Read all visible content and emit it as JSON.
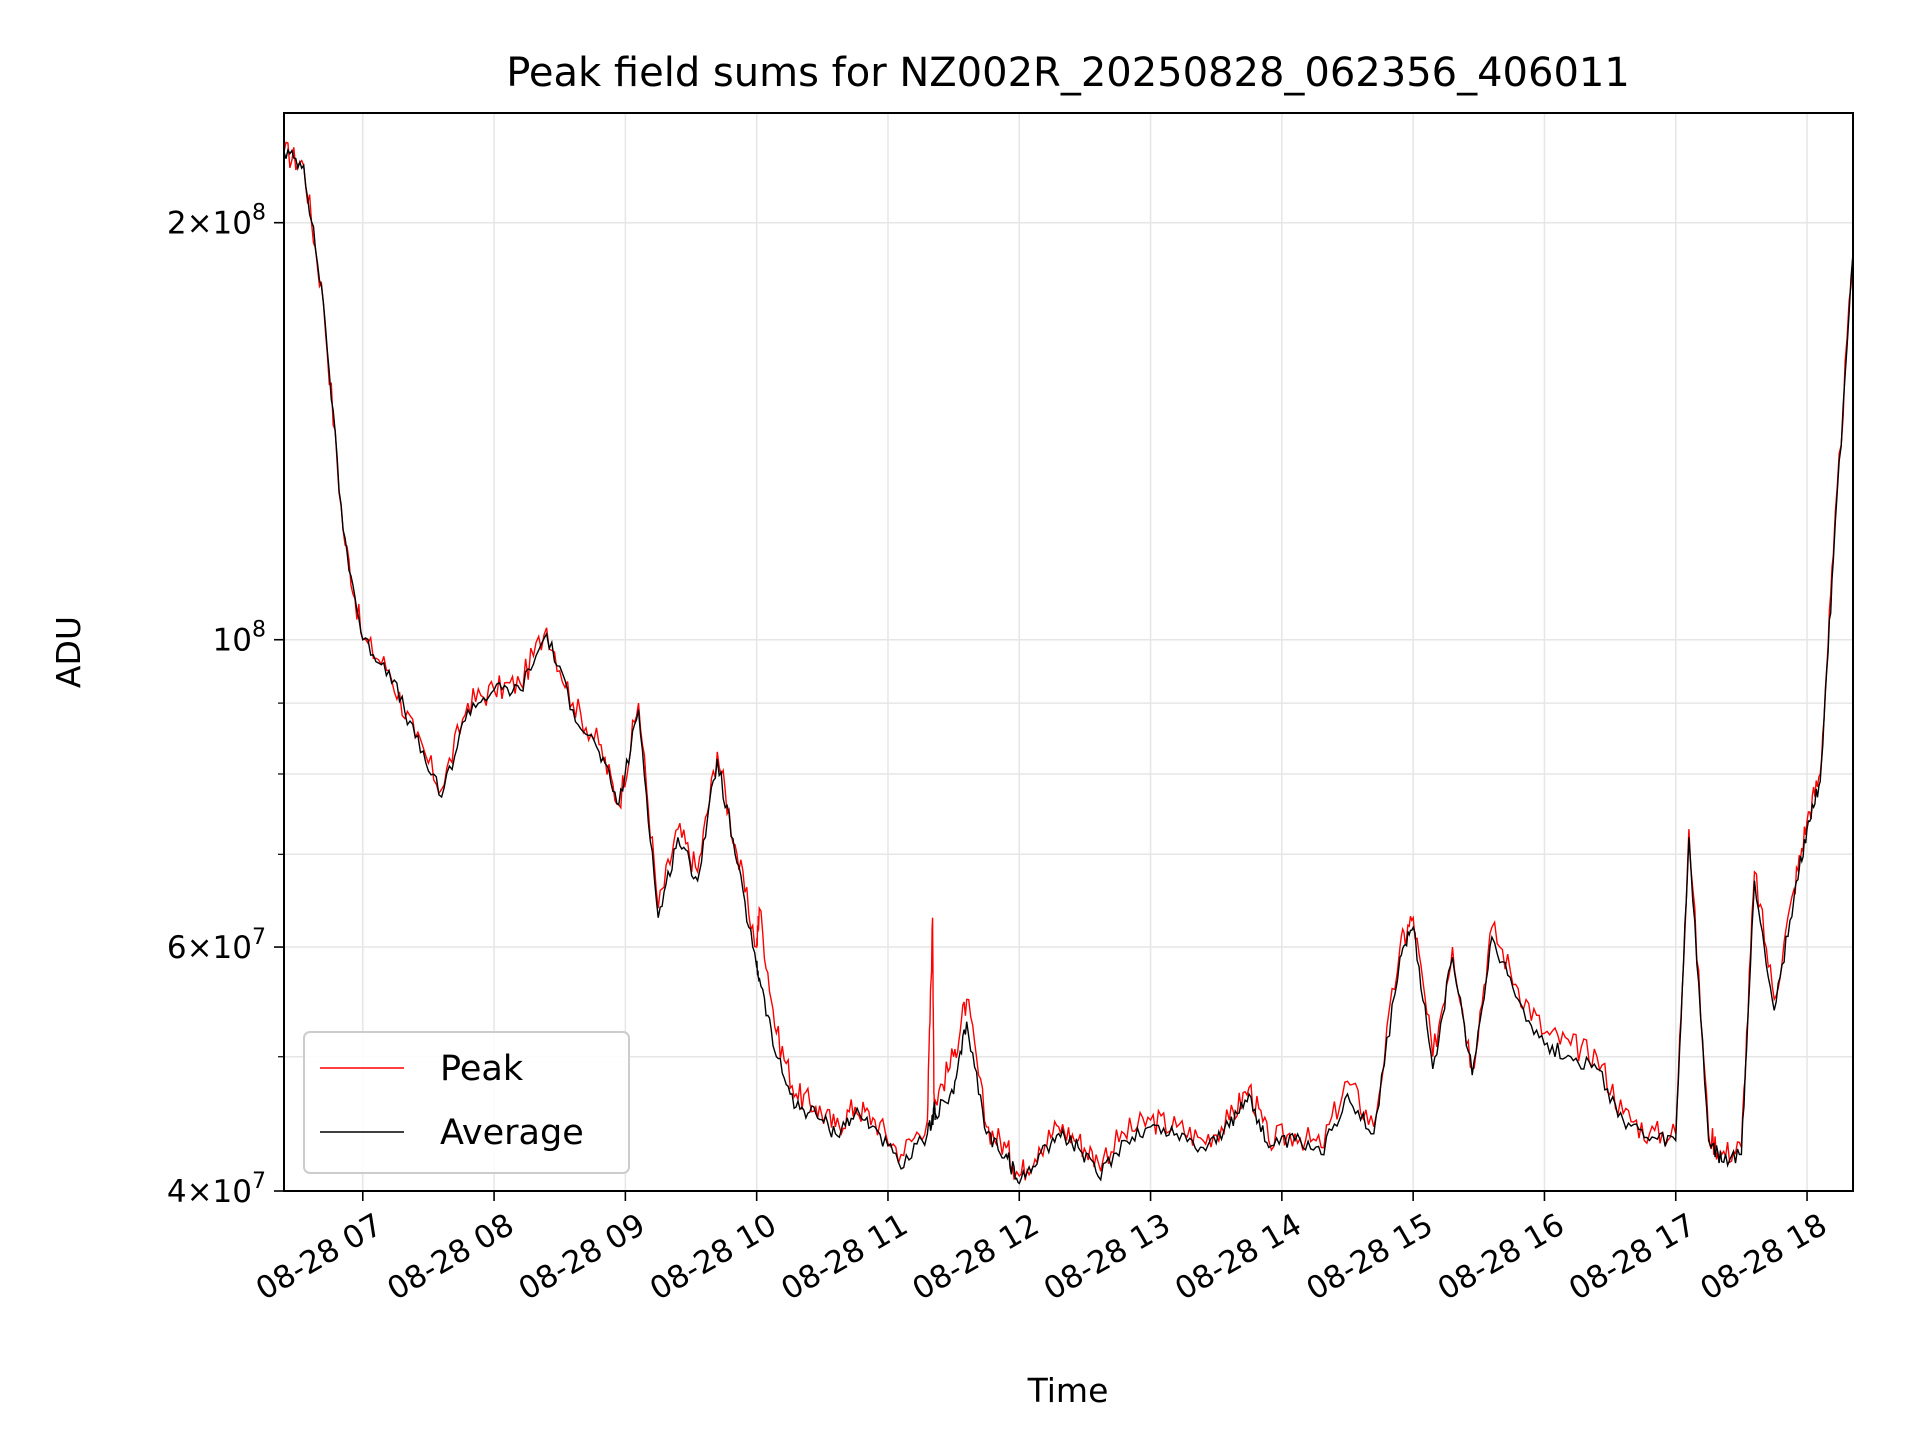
{
  "chart_data": {
    "type": "line",
    "title": "Peak field sums for NZ002R_20250828_062356_406011",
    "xlabel": "Time",
    "ylabel": "ADU",
    "y_scale": "log",
    "ylim": [
      40000000,
      240000000
    ],
    "xlim": [
      "08-28 06:24",
      "08-28 18:21"
    ],
    "grid": true,
    "legend_position": "lower-left",
    "x_ticks": [
      "08-28 07",
      "08-28 08",
      "08-28 09",
      "08-28 10",
      "08-28 11",
      "08-28 12",
      "08-28 13",
      "08-28 14",
      "08-28 15",
      "08-28 16",
      "08-28 17",
      "08-28 18"
    ],
    "y_ticks": [
      {
        "value": 40000000,
        "mantissa": "4",
        "exponent": "7"
      },
      {
        "value": 60000000,
        "mantissa": "6",
        "exponent": "7"
      },
      {
        "value": 100000000,
        "mantissa": "",
        "exponent": "8"
      },
      {
        "value": 200000000,
        "mantissa": "2",
        "exponent": "8"
      }
    ],
    "y_minor_ticks": [
      50000000,
      70000000,
      80000000,
      90000000
    ],
    "series": [
      {
        "name": "Peak",
        "color": "#ff0000",
        "x_hours": [
          6.4,
          6.55,
          6.7,
          6.85,
          7.0,
          7.2,
          7.4,
          7.6,
          7.8,
          8.0,
          8.2,
          8.4,
          8.6,
          8.8,
          8.95,
          9.1,
          9.25,
          9.4,
          9.55,
          9.7,
          9.85,
          10.0,
          10.02,
          10.15,
          10.3,
          10.45,
          10.6,
          10.75,
          10.9,
          11.1,
          11.3,
          11.34,
          11.35,
          11.36,
          11.5,
          11.6,
          11.75,
          11.9,
          12.0,
          12.15,
          12.3,
          12.45,
          12.6,
          12.8,
          13.0,
          13.2,
          13.4,
          13.6,
          13.75,
          13.9,
          14.1,
          14.3,
          14.5,
          14.7,
          14.9,
          15.0,
          15.15,
          15.3,
          15.45,
          15.6,
          15.8,
          16.0,
          16.2,
          16.4,
          16.6,
          16.8,
          17.0,
          17.1,
          17.25,
          17.35,
          17.5,
          17.6,
          17.75,
          17.9,
          18.0,
          18.1,
          18.2,
          18.35
        ],
        "y": [
          225000000,
          220000000,
          175000000,
          120000000,
          100000000,
          95000000,
          85000000,
          78000000,
          90000000,
          92000000,
          93000000,
          102000000,
          90000000,
          84000000,
          76000000,
          90000000,
          64000000,
          73000000,
          68000000,
          83000000,
          70000000,
          60000000,
          64000000,
          52000000,
          47000000,
          46000000,
          44500000,
          46000000,
          45000000,
          42500000,
          45000000,
          63000000,
          47000000,
          46500000,
          50000000,
          55000000,
          44500000,
          43000000,
          41000000,
          43000000,
          44500000,
          43500000,
          42000000,
          44000000,
          45000000,
          44500000,
          43500000,
          45000000,
          47500000,
          43500000,
          44000000,
          43000000,
          48000000,
          44500000,
          60000000,
          63000000,
          50000000,
          60000000,
          49000000,
          62000000,
          56000000,
          52000000,
          51000000,
          50000000,
          45500000,
          44000000,
          44000000,
          73000000,
          44000000,
          42500000,
          43000000,
          68000000,
          55000000,
          66000000,
          74000000,
          80000000,
          115000000,
          190000000
        ]
      },
      {
        "name": "Average",
        "color": "#000000",
        "x_hours": [
          6.4,
          6.55,
          6.7,
          6.85,
          7.0,
          7.2,
          7.4,
          7.6,
          7.8,
          8.0,
          8.2,
          8.4,
          8.6,
          8.8,
          8.95,
          9.1,
          9.25,
          9.4,
          9.55,
          9.7,
          9.85,
          10.0,
          10.02,
          10.15,
          10.3,
          10.45,
          10.6,
          10.75,
          10.9,
          11.1,
          11.3,
          11.34,
          11.35,
          11.36,
          11.5,
          11.6,
          11.75,
          11.9,
          12.0,
          12.15,
          12.3,
          12.45,
          12.6,
          12.8,
          13.0,
          13.2,
          13.4,
          13.6,
          13.75,
          13.9,
          14.1,
          14.3,
          14.5,
          14.7,
          14.9,
          15.0,
          15.15,
          15.3,
          15.45,
          15.6,
          15.8,
          16.0,
          16.2,
          16.4,
          16.6,
          16.8,
          17.0,
          17.1,
          17.25,
          17.35,
          17.5,
          17.6,
          17.75,
          17.9,
          18.0,
          18.1,
          18.2,
          18.35
        ],
        "y": [
          225000000,
          220000000,
          175000000,
          120000000,
          100000000,
          95000000,
          85000000,
          77000000,
          89000000,
          92000000,
          92000000,
          101000000,
          89000000,
          83000000,
          76000000,
          89000000,
          63000000,
          72000000,
          67000000,
          82000000,
          69000000,
          58000000,
          57000000,
          50000000,
          46000000,
          45500000,
          44000000,
          45500000,
          44500000,
          41500000,
          44000000,
          45000000,
          46000000,
          45500000,
          47000000,
          53000000,
          44000000,
          42500000,
          40500000,
          42500000,
          44000000,
          43000000,
          41000000,
          43500000,
          44500000,
          44000000,
          43000000,
          44500000,
          47000000,
          43000000,
          43500000,
          42500000,
          47000000,
          44000000,
          59000000,
          62000000,
          49000000,
          59000000,
          48500000,
          61000000,
          55000000,
          51000000,
          50000000,
          49000000,
          45000000,
          43500000,
          43500000,
          72000000,
          43500000,
          42000000,
          42500000,
          67000000,
          54000000,
          65000000,
          73000000,
          79000000,
          114000000,
          190000000
        ]
      }
    ]
  }
}
